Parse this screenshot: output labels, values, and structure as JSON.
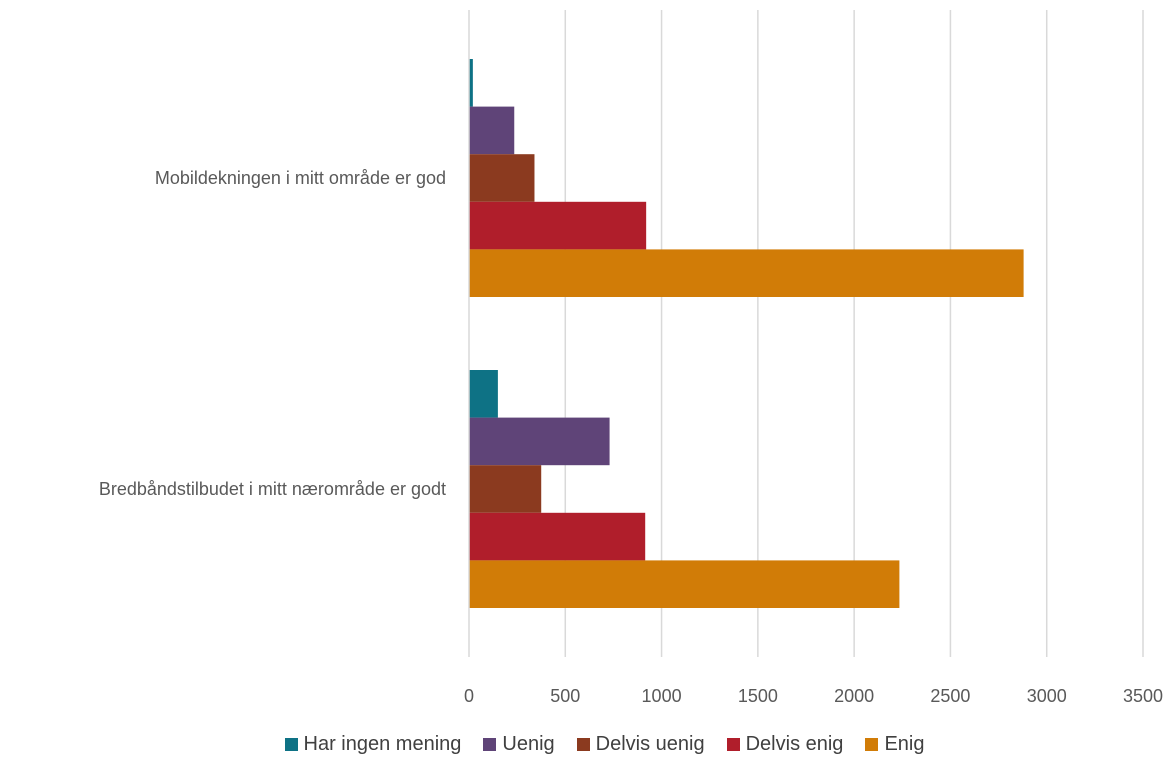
{
  "chart_data": {
    "type": "bar",
    "orientation": "horizontal",
    "title": "",
    "xlabel": "",
    "ylabel": "",
    "categories": [
      "Mobildekningen i mitt område er god",
      "Bredbåndstilbudet i mitt nærområde er godt"
    ],
    "series": [
      {
        "name": "Har ingen mening",
        "color": "#0e7285",
        "values": [
          20,
          150
        ]
      },
      {
        "name": "Uenig",
        "color": "#5f4478",
        "values": [
          235,
          730
        ]
      },
      {
        "name": "Delvis uenig",
        "color": "#8b3a1f",
        "values": [
          340,
          375
        ]
      },
      {
        "name": "Delvis enig",
        "color": "#b01e2b",
        "values": [
          920,
          915
        ]
      },
      {
        "name": "Enig",
        "color": "#d17c07",
        "values": [
          2880,
          2235
        ]
      }
    ],
    "xlim": [
      0,
      3500
    ],
    "xticks": [
      0,
      500,
      1000,
      1500,
      2000,
      2500,
      3000,
      3500
    ],
    "xtick_labels": [
      "0",
      "500",
      "1000",
      "1500",
      "2000",
      "2500",
      "3000",
      "3500"
    ],
    "grid": true,
    "legend_position": "bottom"
  }
}
